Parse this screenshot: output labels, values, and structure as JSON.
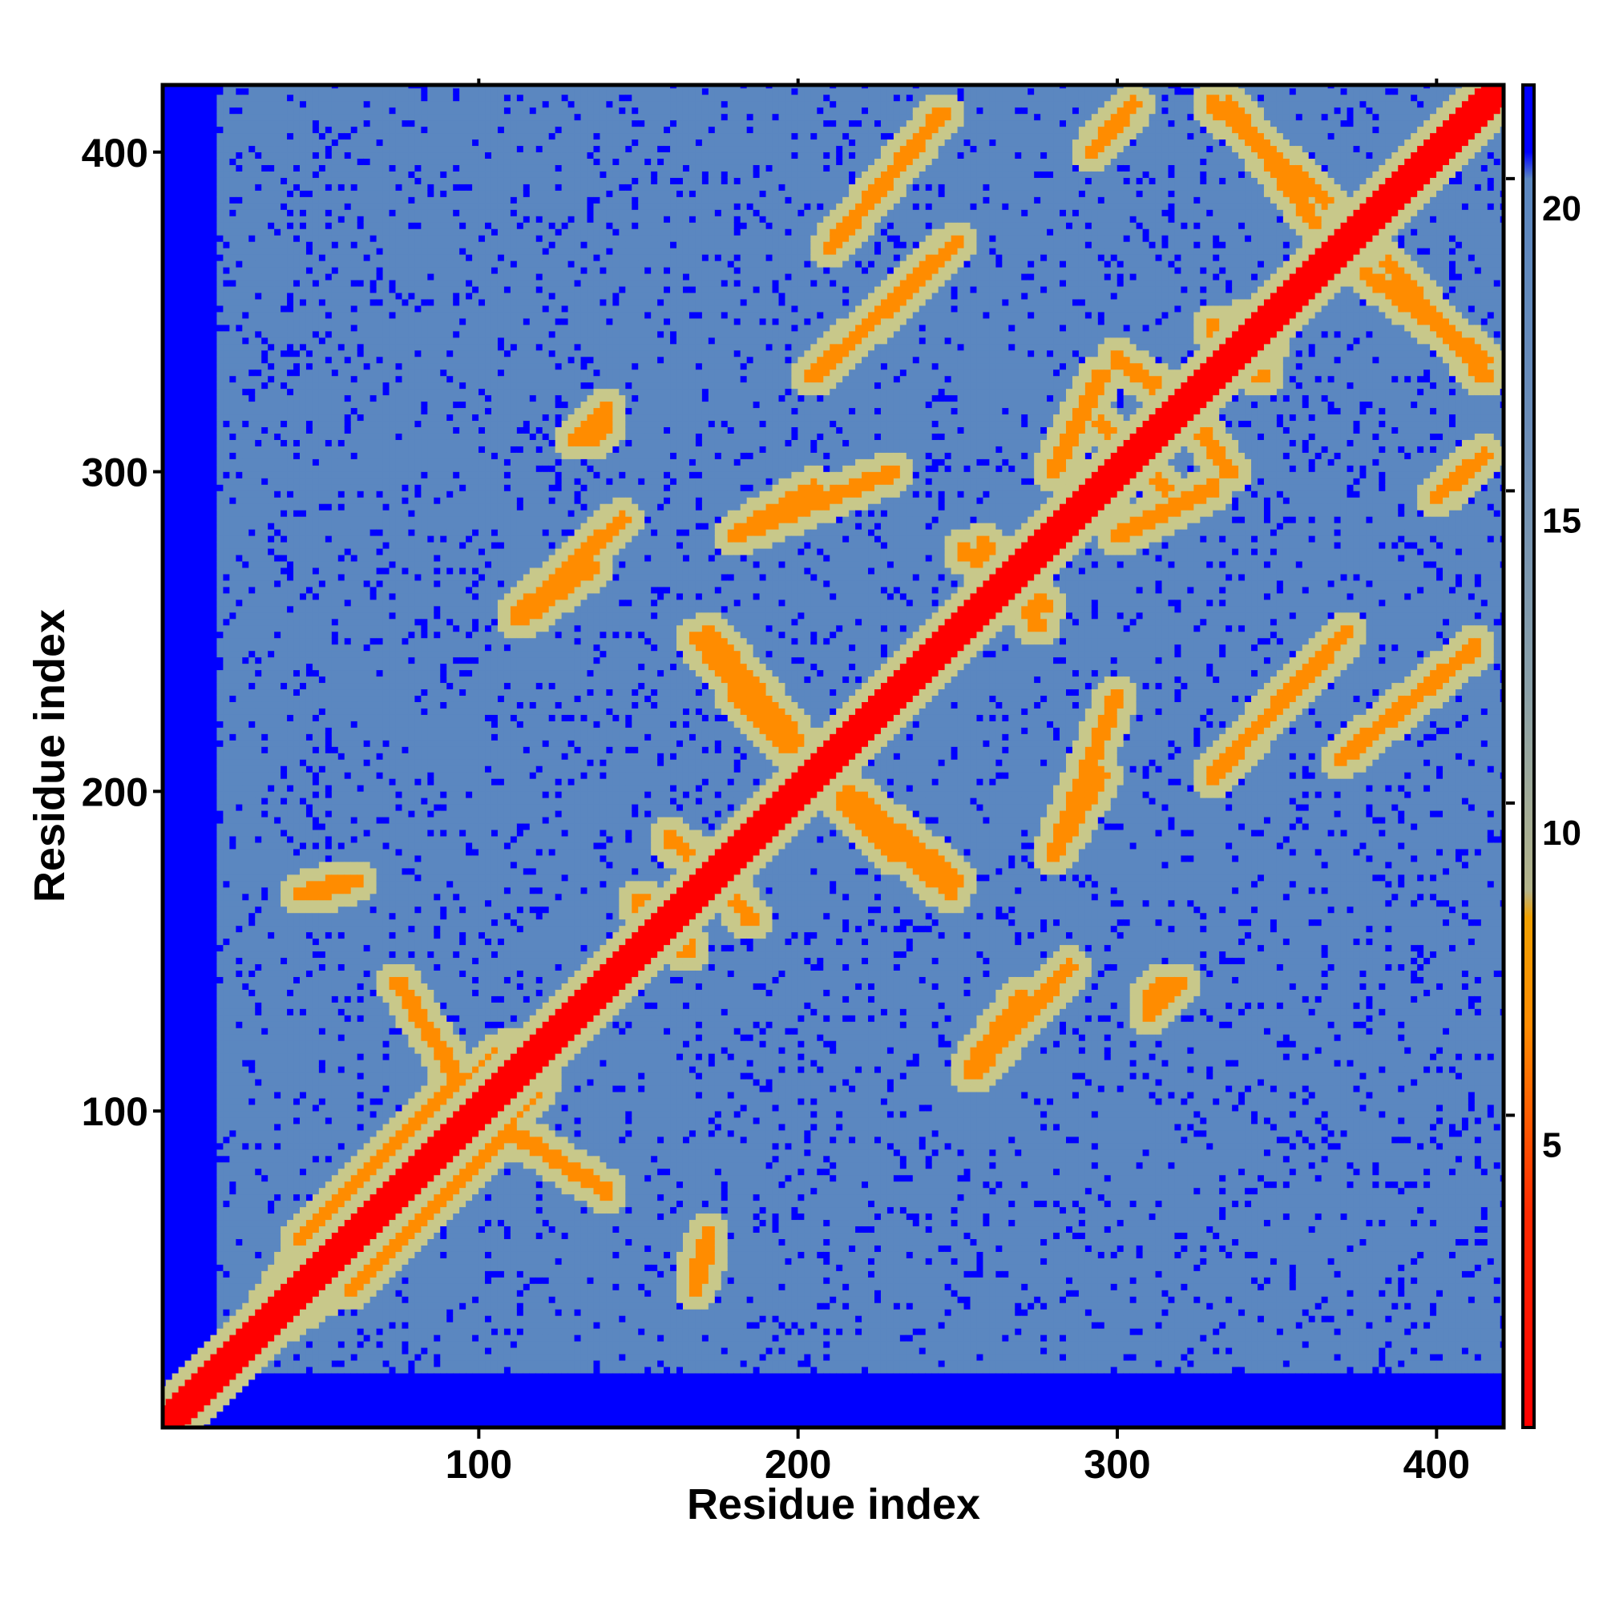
{
  "chart_data": {
    "type": "heatmap",
    "title": "",
    "xlabel": "Residue index",
    "ylabel": "Residue index",
    "xlim": [
      1,
      421
    ],
    "ylim": [
      1,
      421
    ],
    "x_ticks": [
      100,
      200,
      300,
      400
    ],
    "y_ticks": [
      100,
      200,
      300,
      400
    ],
    "grid": false,
    "colorbar": {
      "placement": "right",
      "range": [
        0,
        21.5
      ],
      "ticks": [
        5,
        10,
        15,
        20
      ],
      "colors": {
        "near": "#ff0000",
        "mid": "#ff8c00",
        "light": "#c8c88a",
        "far": "#5b87c0",
        "max": "#0000ff"
      }
    },
    "structure": {
      "diagonal_value": 0,
      "background_value": 21.5,
      "typical_value": 18,
      "contact_bands": [
        {
          "x": [
            25,
            420
          ],
          "y": [
            25,
            420
          ],
          "value": 3,
          "description": "main diagonal"
        },
        {
          "x": [
            168,
            230
          ],
          "y": [
            248,
            180
          ],
          "value": 5
        },
        {
          "x": [
            210,
            250
          ],
          "y": [
            205,
            172
          ],
          "value": 5
        },
        {
          "x": [
            180,
            230
          ],
          "y": [
            280,
            300
          ],
          "value": 7
        },
        {
          "x": [
            205,
            250
          ],
          "y": [
            330,
            372
          ],
          "value": 6
        },
        {
          "x": [
            330,
            365
          ],
          "y": [
            415,
            385
          ],
          "value": 6
        },
        {
          "x": [
            378,
            415
          ],
          "y": [
            362,
            335
          ],
          "value": 6
        },
        {
          "x": [
            370,
            412
          ],
          "y": [
            210,
            245
          ],
          "value": 7
        },
        {
          "x": [
            300,
            330
          ],
          "y": [
            280,
            295
          ],
          "value": 7
        },
        {
          "x": [
            280,
            295
          ],
          "y": [
            180,
            205
          ],
          "value": 7
        },
        {
          "x": [
            255,
            285
          ],
          "y": [
            112,
            145
          ],
          "value": 6
        },
        {
          "x": [
            115,
            135
          ],
          "y": [
            255,
            270
          ],
          "value": 6
        },
        {
          "x": [
            60,
            95
          ],
          "y": [
            75,
            110
          ],
          "value": 6
        },
        {
          "x": [
            90,
            120
          ],
          "y": [
            75,
            110
          ],
          "value": 7
        },
        {
          "x": [
            60,
            90
          ],
          "y": [
            45,
            75
          ],
          "value": 7
        },
        {
          "x": [
            100,
            140
          ],
          "y": [
            100,
            75
          ],
          "value": 7
        },
        {
          "x": [
            150,
            165
          ],
          "y": [
            165,
            152
          ],
          "value": 5
        },
        {
          "x": [
            170,
            185
          ],
          "y": [
            180,
            160
          ],
          "value": 6
        },
        {
          "x": [
            258,
            275
          ],
          "y": [
            278,
            252
          ],
          "value": 5
        },
        {
          "x": [
            295,
            310
          ],
          "y": [
            315,
            300
          ],
          "value": 7
        },
        {
          "x": [
            340,
            345
          ],
          "y": [
            348,
            330
          ],
          "value": 7
        },
        {
          "x": [
            300,
            315
          ],
          "y": [
            335,
            325
          ],
          "value": 7
        },
        {
          "x": [
            130,
            140
          ],
          "y": [
            310,
            320
          ],
          "value": 7
        },
        {
          "x": [
            168,
            172
          ],
          "y": [
            48,
            62
          ],
          "value": 6
        },
        {
          "x": [
            45,
            58
          ],
          "y": [
            168,
            172
          ],
          "value": 7
        },
        {
          "x": [
            35,
            45
          ],
          "y": [
            40,
            55
          ],
          "value": 7
        },
        {
          "x": [
            310,
            315
          ],
          "y": [
            135,
            140
          ],
          "value": 7
        },
        {
          "x": [
            400,
            415
          ],
          "y": [
            292,
            305
          ],
          "value": 7
        }
      ]
    }
  }
}
